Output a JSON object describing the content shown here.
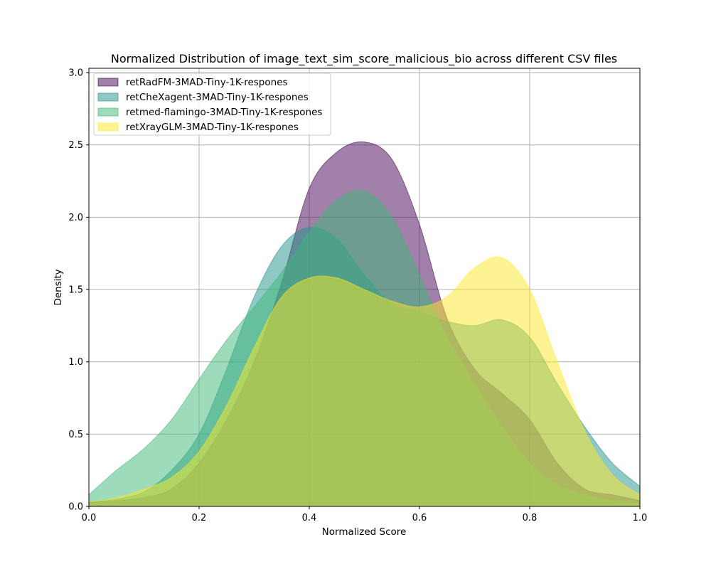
{
  "chart_data": {
    "type": "area",
    "title": "Normalized Distribution of image_text_sim_score_malicious_bio across different CSV files",
    "xlabel": "Normalized Score",
    "ylabel": "Density",
    "xlim": [
      0,
      1
    ],
    "ylim": [
      0,
      3.03
    ],
    "xticks": [
      "0.0",
      "0.2",
      "0.4",
      "0.6",
      "0.8",
      "1.0"
    ],
    "yticks": [
      "0.0",
      "0.5",
      "1.0",
      "1.5",
      "2.0",
      "2.5",
      "3.0"
    ],
    "grid": true,
    "legend_position": "upper-left",
    "fill_opacity": 0.5,
    "x": [
      0,
      0.05,
      0.1,
      0.15,
      0.2,
      0.25,
      0.3,
      0.35,
      0.4,
      0.45,
      0.5,
      0.55,
      0.6,
      0.65,
      0.7,
      0.75,
      0.8,
      0.85,
      0.9,
      0.95,
      1.0
    ],
    "series": [
      {
        "name": "retRadFM-3MAD-Tiny-1K-respones",
        "color": "#440154",
        "values": [
          0.03,
          0.04,
          0.06,
          0.12,
          0.3,
          0.6,
          1.0,
          1.55,
          2.2,
          2.45,
          2.52,
          2.4,
          1.95,
          1.3,
          0.95,
          0.78,
          0.6,
          0.3,
          0.12,
          0.08,
          0.04
        ]
      },
      {
        "name": "retCheXagent-3MAD-Tiny-1K-respones",
        "color": "#21918c",
        "values": [
          0.03,
          0.05,
          0.1,
          0.25,
          0.5,
          0.95,
          1.45,
          1.8,
          1.93,
          1.85,
          1.6,
          1.4,
          1.35,
          1.28,
          1.25,
          1.29,
          1.17,
          0.85,
          0.55,
          0.3,
          0.14
        ]
      },
      {
        "name": "retmed-flamingo-3MAD-Tiny-1K-respones",
        "color": "#3bb777",
        "values": [
          0.08,
          0.25,
          0.4,
          0.6,
          0.88,
          1.15,
          1.38,
          1.62,
          1.9,
          2.12,
          2.18,
          2.0,
          1.6,
          1.17,
          0.85,
          0.55,
          0.3,
          0.15,
          0.08,
          0.04,
          0.02
        ]
      },
      {
        "name": "retXrayGLM-3MAD-Tiny-1K-respones",
        "color": "#fde725",
        "values": [
          0.03,
          0.06,
          0.12,
          0.2,
          0.38,
          0.7,
          1.1,
          1.45,
          1.58,
          1.58,
          1.5,
          1.42,
          1.38,
          1.45,
          1.65,
          1.72,
          1.5,
          1.0,
          0.52,
          0.22,
          0.08
        ]
      }
    ]
  }
}
